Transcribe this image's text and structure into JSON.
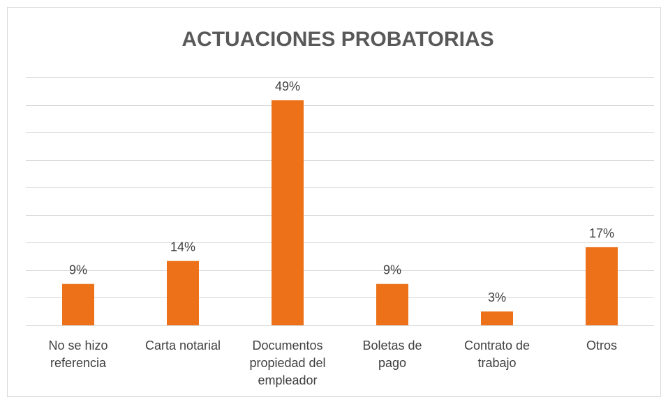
{
  "chart_data": {
    "type": "bar",
    "title": "ACTUACIONES PROBATORIAS",
    "categories": [
      "No se hizo referencia",
      "Carta notarial",
      "Documentos propiedad del empleador",
      "Boletas de pago",
      "Contrato de trabajo",
      "Otros"
    ],
    "values": [
      9,
      14,
      49,
      9,
      3,
      17
    ],
    "value_labels": [
      "9%",
      "14%",
      "49%",
      "9%",
      "3%",
      "17%"
    ],
    "color": "#ec7118",
    "ylim": [
      0,
      54
    ],
    "yticks": [
      0,
      6,
      12,
      18,
      24,
      30,
      36,
      42,
      48,
      54
    ],
    "grid": true
  }
}
